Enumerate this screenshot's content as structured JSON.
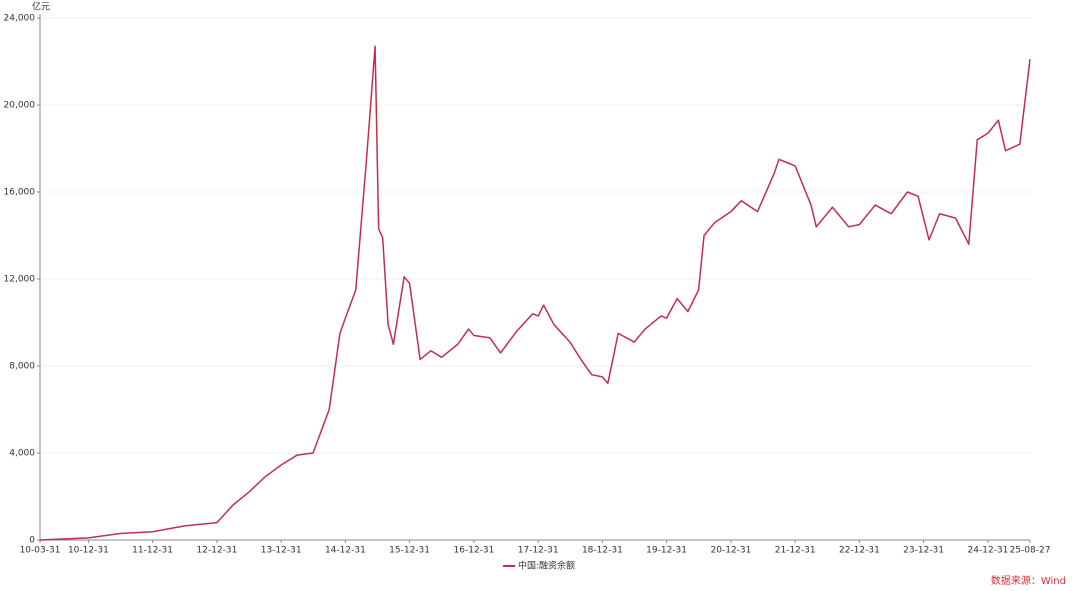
{
  "chart_data": {
    "type": "line",
    "y_unit": "亿元",
    "source": "数据来源：Wind",
    "x": [
      "10-03-31",
      "10-12-31",
      "11-06-30",
      "11-12-31",
      "12-06-30",
      "12-12-31",
      "13-03-31",
      "13-06-30",
      "13-09-30",
      "13-12-31",
      "14-03-31",
      "14-06-30",
      "14-09-30",
      "14-11-30",
      "14-12-31",
      "15-02-28",
      "15-04-30",
      "15-06-18",
      "15-07-08",
      "15-07-31",
      "15-08-31",
      "15-09-30",
      "15-11-30",
      "15-12-31",
      "16-02-29",
      "16-04-30",
      "16-06-30",
      "16-09-30",
      "16-11-30",
      "16-12-31",
      "17-03-31",
      "17-05-31",
      "17-08-31",
      "17-11-30",
      "17-12-31",
      "18-01-31",
      "18-03-31",
      "18-06-30",
      "18-08-31",
      "18-10-31",
      "18-12-31",
      "19-01-31",
      "19-03-31",
      "19-06-30",
      "19-08-31",
      "19-11-30",
      "19-12-31",
      "20-02-29",
      "20-04-30",
      "20-06-30",
      "20-07-31",
      "20-09-30",
      "20-12-31",
      "21-02-28",
      "21-05-31",
      "21-08-31",
      "21-09-30",
      "21-12-31",
      "22-03-31",
      "22-04-30",
      "22-07-31",
      "22-10-31",
      "22-12-31",
      "23-03-31",
      "23-06-30",
      "23-09-30",
      "23-11-30",
      "24-01-31",
      "24-03-31",
      "24-06-30",
      "24-09-13",
      "24-10-31",
      "24-12-31",
      "25-02-28",
      "25-04-10",
      "25-06-30",
      "25-08-27"
    ],
    "series": [
      {
        "name": "中国:融资余额",
        "color": "#c0304a",
        "values": [
          0,
          100,
          300,
          380,
          650,
          800,
          1600,
          2200,
          2900,
          3450,
          3900,
          4000,
          6000,
          9500,
          10200,
          11500,
          17500,
          22700,
          14300,
          13900,
          9900,
          9000,
          12100,
          11800,
          8300,
          8700,
          8400,
          9000,
          9700,
          9400,
          9300,
          8600,
          9600,
          10400,
          10300,
          10800,
          9900,
          9100,
          8300,
          7600,
          7500,
          7200,
          9500,
          9100,
          9700,
          10300,
          10200,
          11100,
          10500,
          11500,
          14000,
          14600,
          15100,
          15600,
          15100,
          16800,
          17500,
          17200,
          15400,
          14400,
          15300,
          14400,
          14500,
          15400,
          15000,
          16000,
          15800,
          13800,
          15000,
          14800,
          13600,
          18400,
          18700,
          19300,
          17900,
          18200,
          22100
        ]
      }
    ],
    "xlim": [
      "10-03-31",
      "25-08-27"
    ],
    "xticks": [
      "10-03-31",
      "10-12-31",
      "11-12-31",
      "12-12-31",
      "13-12-31",
      "14-12-31",
      "15-12-31",
      "16-12-31",
      "17-12-31",
      "18-12-31",
      "19-12-31",
      "20-12-31",
      "21-12-31",
      "22-12-31",
      "23-12-31",
      "24-12-31",
      "25-08-27"
    ],
    "ylim": [
      0,
      24000
    ],
    "yticks": [
      0,
      {
        "value": 4000,
        "label": "4,000"
      },
      {
        "value": 8000,
        "label": "8,000"
      },
      {
        "value": 12000,
        "label": "12,000"
      },
      {
        "value": 16000,
        "label": "16,000"
      },
      {
        "value": 20000,
        "label": "20,000"
      },
      {
        "value": 24000,
        "label": "24,000"
      }
    ],
    "grid": true
  }
}
